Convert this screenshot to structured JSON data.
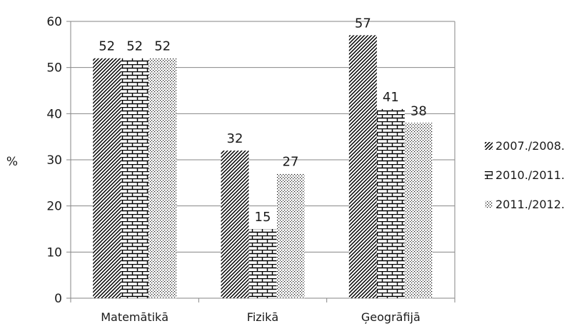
{
  "chart_data": {
    "type": "bar",
    "title": "",
    "xlabel": "",
    "ylabel": "%",
    "ylim": [
      0,
      60
    ],
    "yticks": [
      0,
      10,
      20,
      30,
      40,
      50,
      60
    ],
    "grid": true,
    "legend_position": "right",
    "categories": [
      "Matemātikā",
      "Fizikā",
      "Ģeogrāfijā"
    ],
    "series": [
      {
        "name": "2007./2008.",
        "pattern": "diagonal-hatch",
        "values": [
          52,
          32,
          57
        ]
      },
      {
        "name": "2010./2011.",
        "pattern": "brick",
        "values": [
          52,
          15,
          41
        ]
      },
      {
        "name": "2011./2012.",
        "pattern": "dots",
        "values": [
          52,
          27,
          38
        ]
      }
    ]
  }
}
